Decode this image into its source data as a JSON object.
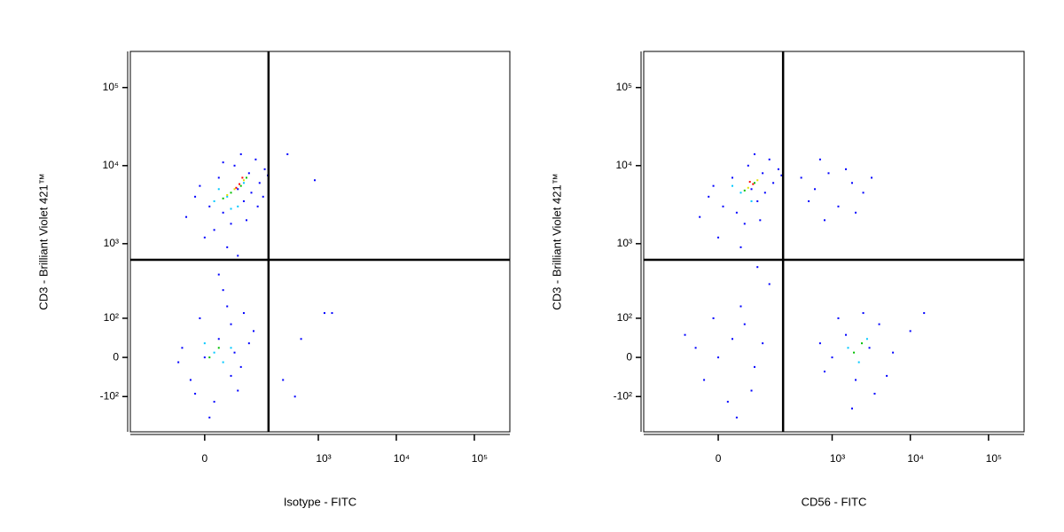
{
  "chart_data": [
    {
      "type": "scatter",
      "scale": "biexponential",
      "xlabel": "Isotype - FITC",
      "ylabel": "CD3 - Brilliant Violet 421™",
      "xlim": [
        -310,
        285000
      ],
      "ylim": [
        -310,
        290000
      ],
      "xticks": [
        0,
        {
          "value": 1000,
          "label": "10³"
        },
        {
          "value": 10000,
          "label": "10⁴"
        },
        {
          "value": 100000,
          "label": "10⁵"
        }
      ],
      "yticks": [
        {
          "value": -100,
          "label": "-10²"
        },
        0,
        {
          "value": 100,
          "label": "10²"
        },
        {
          "value": 1000,
          "label": "10³"
        },
        {
          "value": 10000,
          "label": "10⁴"
        },
        {
          "value": 100000,
          "label": "10⁵"
        }
      ],
      "gates": {
        "x": 225,
        "y": 620
      },
      "series": [
        {
          "color": "#0000ff",
          "x": [
            10,
            40,
            80,
            120,
            150,
            -20,
            60,
            100,
            200,
            30,
            -40,
            90,
            170,
            0,
            50,
            130,
            70,
            -10,
            220,
            110,
            20,
            160,
            80,
            40,
            190,
            0,
            30,
            -30,
            60,
            90,
            -50,
            20,
            120,
            50,
            -10,
            80,
            10,
            140,
            -60,
            40,
            70,
            100,
            -20,
            30,
            60,
            400,
            900,
            1500,
            1200,
            350,
            600,
            500
          ],
          "y": [
            3000,
            2500,
            5000,
            8000,
            12000,
            4000,
            1800,
            3500,
            9000,
            7000,
            2200,
            14000,
            6000,
            1200,
            900,
            4500,
            10000,
            5500,
            7500,
            2000,
            1500,
            3000,
            700,
            11000,
            4000,
            0,
            40,
            -50,
            80,
            -20,
            20,
            -120,
            30,
            150,
            100,
            -80,
            -200,
            60,
            -10,
            250,
            10,
            120,
            -90,
            400,
            -40,
            14000,
            6500,
            120,
            120,
            -50,
            40,
            -100
          ]
        },
        {
          "color": "#00c8ff",
          "x": [
            50,
            80,
            30,
            100,
            60,
            20,
            20,
            40,
            0,
            60
          ],
          "y": [
            4000,
            3000,
            5000,
            6000,
            2800,
            3500,
            10,
            -10,
            30,
            20
          ]
        },
        {
          "color": "#00c000",
          "x": [
            60,
            90,
            40,
            110,
            30,
            10
          ],
          "y": [
            4500,
            5500,
            3800,
            7000,
            20,
            0
          ]
        },
        {
          "color": "#e0e000",
          "x": [
            70,
            100,
            50
          ],
          "y": [
            5000,
            6500,
            4200
          ]
        },
        {
          "color": "#ff0000",
          "x": [
            85,
            75,
            95
          ],
          "y": [
            5800,
            5200,
            7000
          ]
        }
      ]
    },
    {
      "type": "scatter",
      "scale": "biexponential",
      "xlabel": "CD56 - FITC",
      "ylabel": "CD3 - Brilliant Violet 421™",
      "xlim": [
        -310,
        285000
      ],
      "ylim": [
        -310,
        290000
      ],
      "xticks": [
        0,
        {
          "value": 1000,
          "label": "10³"
        },
        {
          "value": 10000,
          "label": "10⁴"
        },
        {
          "value": 100000,
          "label": "10⁵"
        }
      ],
      "yticks": [
        {
          "value": -100,
          "label": "-10²"
        },
        0,
        {
          "value": 100,
          "label": "10²"
        },
        {
          "value": 1000,
          "label": "10³"
        },
        {
          "value": 10000,
          "label": "10⁴"
        },
        {
          "value": 100000,
          "label": "10⁵"
        }
      ],
      "gates": {
        "x": 231,
        "y": 620
      },
      "series": [
        {
          "color": "#0000ff",
          "x": [
            10,
            40,
            80,
            120,
            150,
            -20,
            60,
            100,
            200,
            30,
            -40,
            90,
            170,
            0,
            50,
            130,
            70,
            -10,
            220,
            110,
            400,
            600,
            900,
            1200,
            1800,
            2500,
            3200,
            500,
            800,
            1500,
            700,
            2000,
            0,
            30,
            -30,
            60,
            90,
            -50,
            20,
            120,
            50,
            -10,
            80,
            150,
            100,
            40,
            -80,
            1000,
            1500,
            2000,
            3000,
            4000,
            6000,
            800,
            2500,
            1800,
            1200,
            5000,
            10000,
            3500,
            700,
            15000
          ],
          "y": [
            3000,
            2500,
            5000,
            8000,
            12000,
            4000,
            1800,
            3500,
            9000,
            7000,
            2200,
            14000,
            6000,
            1200,
            900,
            4500,
            10000,
            5500,
            7500,
            2000,
            7000,
            5000,
            8000,
            3000,
            6000,
            4500,
            7000,
            3500,
            2000,
            9000,
            12000,
            2500,
            0,
            40,
            -50,
            80,
            -20,
            20,
            -120,
            30,
            150,
            100,
            -80,
            300,
            500,
            -200,
            50,
            0,
            50,
            -50,
            20,
            80,
            10,
            -30,
            120,
            -150,
            100,
            -40,
            60,
            -90,
            30,
            120
          ]
        },
        {
          "color": "#00c8ff",
          "x": [
            50,
            80,
            1600,
            2200,
            2800,
            30
          ],
          "y": [
            4500,
            3500,
            20,
            -10,
            40,
            5500
          ]
        },
        {
          "color": "#00c000",
          "x": [
            60,
            90,
            1900,
            2400
          ],
          "y": [
            4800,
            6000,
            10,
            30
          ]
        },
        {
          "color": "#e0e000",
          "x": [
            70,
            100
          ],
          "y": [
            5200,
            6500
          ]
        },
        {
          "color": "#ff0000",
          "x": [
            85,
            75
          ],
          "y": [
            5800,
            6200
          ]
        }
      ]
    }
  ]
}
